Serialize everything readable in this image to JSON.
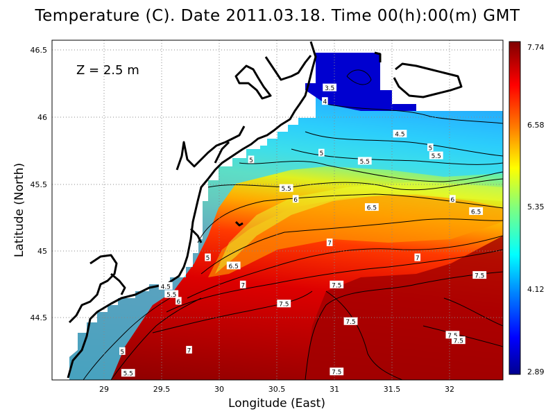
{
  "title": "Temperature (C). Date 2011.03.18. Time 00(h):00(m) GMT",
  "depth_label": "Z  =  2.5  m",
  "xlabel": "Longitude (East)",
  "ylabel": "Latitude (North)",
  "x_ticks": [
    "29",
    "29.5",
    "30",
    "30.5",
    "31",
    "31.5",
    "32"
  ],
  "y_ticks": [
    "46.5",
    "46",
    "45.5",
    "45",
    "44.5"
  ],
  "colorbar_ticks": [
    "7.74",
    "6.58",
    "5.35",
    "4.12",
    "2.89"
  ],
  "chart_data": {
    "type": "heatmap",
    "variable": "Temperature (C)",
    "depth": "Z = 2.5 m",
    "xlim": [
      28.6,
      32.45
    ],
    "ylim": [
      44.05,
      46.55
    ],
    "colorbar_range": [
      2.89,
      7.74
    ],
    "colormap": [
      "#00008f",
      "#0000ff",
      "#007fff",
      "#00ffff",
      "#7fff7f",
      "#ffff00",
      "#ff7f00",
      "#ff0000",
      "#7f0000"
    ],
    "grid": true,
    "coastline_color": "#000000",
    "land_color": "#ffffff",
    "contour_labels": [
      {
        "value": "3.5",
        "lon": 30.97,
        "lat": 46.2
      },
      {
        "value": "4",
        "lon": 30.93,
        "lat": 46.1
      },
      {
        "value": "4.5",
        "lon": 31.57,
        "lat": 45.86
      },
      {
        "value": "5",
        "lon": 31.83,
        "lat": 45.76
      },
      {
        "value": "5",
        "lon": 30.9,
        "lat": 45.72
      },
      {
        "value": "5.5",
        "lon": 31.88,
        "lat": 45.7
      },
      {
        "value": "5.5",
        "lon": 31.27,
        "lat": 45.66
      },
      {
        "value": "5",
        "lon": 30.3,
        "lat": 45.67
      },
      {
        "value": "5.5",
        "lon": 30.6,
        "lat": 45.46
      },
      {
        "value": "6",
        "lon": 30.68,
        "lat": 45.38
      },
      {
        "value": "6",
        "lon": 32.02,
        "lat": 45.38
      },
      {
        "value": "6.5",
        "lon": 31.33,
        "lat": 45.32
      },
      {
        "value": "6.5",
        "lon": 32.22,
        "lat": 45.29
      },
      {
        "value": "7",
        "lon": 30.97,
        "lat": 45.06
      },
      {
        "value": "7",
        "lon": 31.72,
        "lat": 44.95
      },
      {
        "value": "5",
        "lon": 29.93,
        "lat": 44.95
      },
      {
        "value": "6.5",
        "lon": 30.15,
        "lat": 44.89
      },
      {
        "value": "7.5",
        "lon": 32.25,
        "lat": 44.82
      },
      {
        "value": "7",
        "lon": 30.23,
        "lat": 44.75
      },
      {
        "value": "7.5",
        "lon": 31.03,
        "lat": 44.75
      },
      {
        "value": "4.5",
        "lon": 29.57,
        "lat": 44.74
      },
      {
        "value": "5.5",
        "lon": 29.62,
        "lat": 44.68
      },
      {
        "value": "6",
        "lon": 29.68,
        "lat": 44.63
      },
      {
        "value": "7.5",
        "lon": 30.58,
        "lat": 44.61
      },
      {
        "value": "7.5",
        "lon": 31.15,
        "lat": 44.48
      },
      {
        "value": "7.5",
        "lon": 32.02,
        "lat": 44.38
      },
      {
        "value": "7.5",
        "lon": 32.07,
        "lat": 44.34
      },
      {
        "value": "5",
        "lon": 29.2,
        "lat": 44.26
      },
      {
        "value": "7",
        "lon": 29.77,
        "lat": 44.27
      },
      {
        "value": "5.5",
        "lon": 29.25,
        "lat": 44.1
      },
      {
        "value": "7.5",
        "lon": 31.03,
        "lat": 44.11
      }
    ]
  }
}
